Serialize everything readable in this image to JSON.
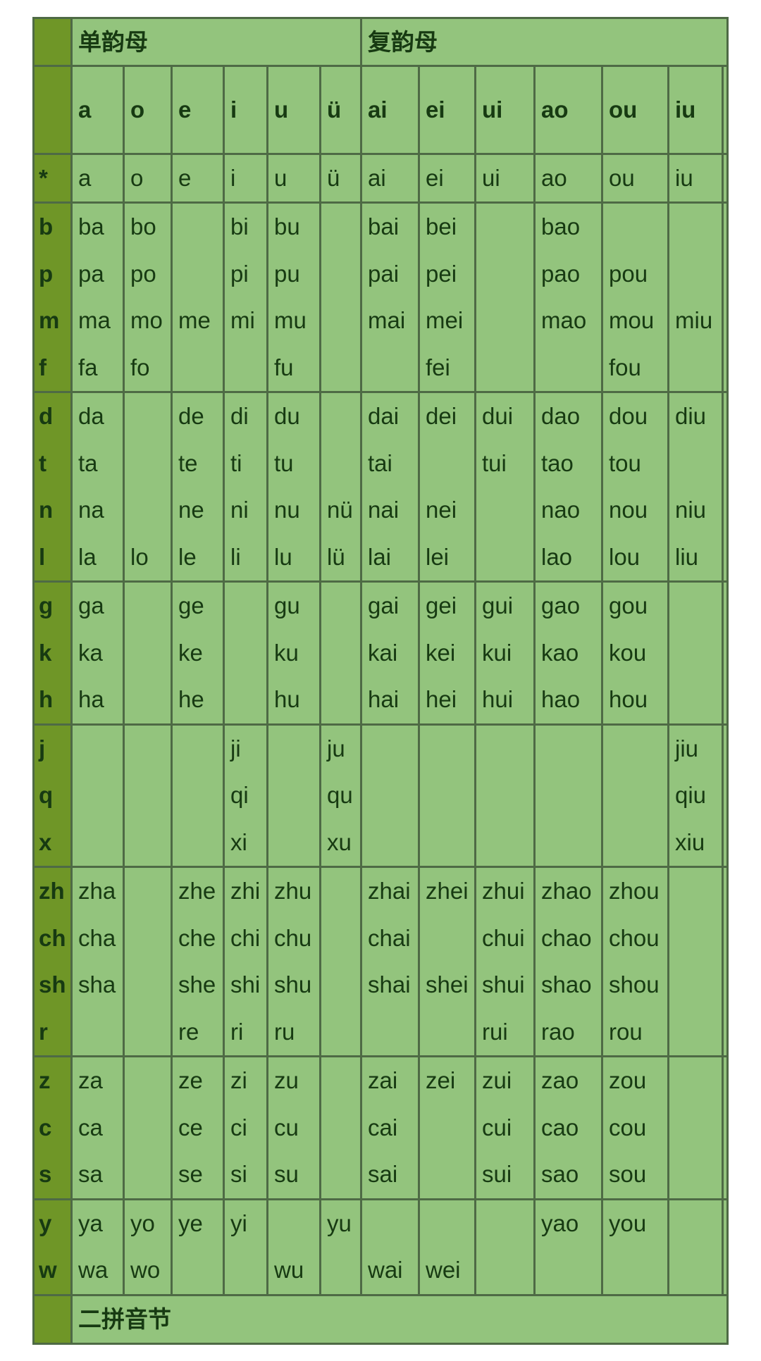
{
  "headers": {
    "simple": "单韵母",
    "compound": "复韵母",
    "footer": "二拼音节"
  },
  "finals": [
    "a",
    "o",
    "e",
    "i",
    "u",
    "ü",
    "ai",
    "ei",
    "ui",
    "ao",
    "ou",
    "iu"
  ],
  "colors": {
    "cell": "#93c47d",
    "initial_column": "#6f9627",
    "border": "#4e6a45",
    "text": "#173a12"
  },
  "groups": [
    {
      "rows": [
        {
          "initial": "*",
          "cells": [
            "a",
            "o",
            "e",
            "i",
            "u",
            "ü",
            "ai",
            "ei",
            "ui",
            "ao",
            "ou",
            "iu"
          ]
        }
      ]
    },
    {
      "rows": [
        {
          "initial": "b",
          "cells": [
            "ba",
            "bo",
            "",
            "bi",
            "bu",
            "",
            "bai",
            "bei",
            "",
            "bao",
            "",
            ""
          ]
        },
        {
          "initial": "p",
          "cells": [
            "pa",
            "po",
            "",
            "pi",
            "pu",
            "",
            "pai",
            "pei",
            "",
            "pao",
            "pou",
            ""
          ]
        },
        {
          "initial": "m",
          "cells": [
            "ma",
            "mo",
            "me",
            "mi",
            "mu",
            "",
            "mai",
            "mei",
            "",
            "mao",
            "mou",
            "miu"
          ]
        },
        {
          "initial": "f",
          "cells": [
            "fa",
            "fo",
            "",
            "",
            "fu",
            "",
            "",
            "fei",
            "",
            "",
            "fou",
            ""
          ]
        }
      ]
    },
    {
      "rows": [
        {
          "initial": "d",
          "cells": [
            "da",
            "",
            "de",
            "di",
            "du",
            "",
            "dai",
            "dei",
            "dui",
            "dao",
            "dou",
            "diu"
          ]
        },
        {
          "initial": "t",
          "cells": [
            "ta",
            "",
            "te",
            "ti",
            "tu",
            "",
            "tai",
            "",
            "tui",
            "tao",
            "tou",
            ""
          ]
        },
        {
          "initial": "n",
          "cells": [
            "na",
            "",
            "ne",
            "ni",
            "nu",
            "nü",
            "nai",
            "nei",
            "",
            "nao",
            "nou",
            "niu"
          ]
        },
        {
          "initial": "l",
          "cells": [
            "la",
            "lo",
            "le",
            "li",
            "lu",
            "lü",
            "lai",
            "lei",
            "",
            "lao",
            "lou",
            "liu"
          ]
        }
      ]
    },
    {
      "rows": [
        {
          "initial": "g",
          "cells": [
            "ga",
            "",
            "ge",
            "",
            "gu",
            "",
            "gai",
            "gei",
            "gui",
            "gao",
            "gou",
            ""
          ]
        },
        {
          "initial": "k",
          "cells": [
            "ka",
            "",
            "ke",
            "",
            "ku",
            "",
            "kai",
            "kei",
            "kui",
            "kao",
            "kou",
            ""
          ]
        },
        {
          "initial": "h",
          "cells": [
            "ha",
            "",
            "he",
            "",
            "hu",
            "",
            "hai",
            "hei",
            "hui",
            "hao",
            "hou",
            ""
          ]
        }
      ]
    },
    {
      "rows": [
        {
          "initial": "j",
          "cells": [
            "",
            "",
            "",
            "ji",
            "",
            "ju",
            "",
            "",
            "",
            "",
            "",
            "jiu"
          ]
        },
        {
          "initial": "q",
          "cells": [
            "",
            "",
            "",
            "qi",
            "",
            "qu",
            "",
            "",
            "",
            "",
            "",
            "qiu"
          ]
        },
        {
          "initial": "x",
          "cells": [
            "",
            "",
            "",
            "xi",
            "",
            "xu",
            "",
            "",
            "",
            "",
            "",
            "xiu"
          ]
        }
      ]
    },
    {
      "rows": [
        {
          "initial": "zh",
          "cells": [
            "zha",
            "",
            "zhe",
            "zhi",
            "zhu",
            "",
            "zhai",
            "zhei",
            "zhui",
            "zhao",
            "zhou",
            ""
          ]
        },
        {
          "initial": "ch",
          "cells": [
            "cha",
            "",
            "che",
            "chi",
            "chu",
            "",
            "chai",
            "",
            "chui",
            "chao",
            "chou",
            ""
          ]
        },
        {
          "initial": "sh",
          "cells": [
            "sha",
            "",
            "she",
            "shi",
            "shu",
            "",
            "shai",
            "shei",
            "shui",
            "shao",
            "shou",
            ""
          ]
        },
        {
          "initial": "r",
          "cells": [
            "",
            "",
            "re",
            "ri",
            "ru",
            "",
            "",
            "",
            "rui",
            "rao",
            "rou",
            ""
          ]
        }
      ]
    },
    {
      "rows": [
        {
          "initial": "z",
          "cells": [
            "za",
            "",
            "ze",
            "zi",
            "zu",
            "",
            "zai",
            "zei",
            "zui",
            "zao",
            "zou",
            ""
          ]
        },
        {
          "initial": "c",
          "cells": [
            "ca",
            "",
            "ce",
            "ci",
            "cu",
            "",
            "cai",
            "",
            "cui",
            "cao",
            "cou",
            ""
          ]
        },
        {
          "initial": "s",
          "cells": [
            "sa",
            "",
            "se",
            "si",
            "su",
            "",
            "sai",
            "",
            "sui",
            "sao",
            "sou",
            ""
          ]
        }
      ]
    },
    {
      "rows": [
        {
          "initial": "y",
          "cells": [
            "ya",
            "yo",
            "ye",
            "yi",
            "",
            "yu",
            "",
            "",
            "",
            "yao",
            "you",
            ""
          ]
        },
        {
          "initial": "w",
          "cells": [
            "wa",
            "wo",
            "",
            "",
            "wu",
            "",
            "wai",
            "wei",
            "",
            "",
            "",
            ""
          ]
        }
      ]
    }
  ]
}
